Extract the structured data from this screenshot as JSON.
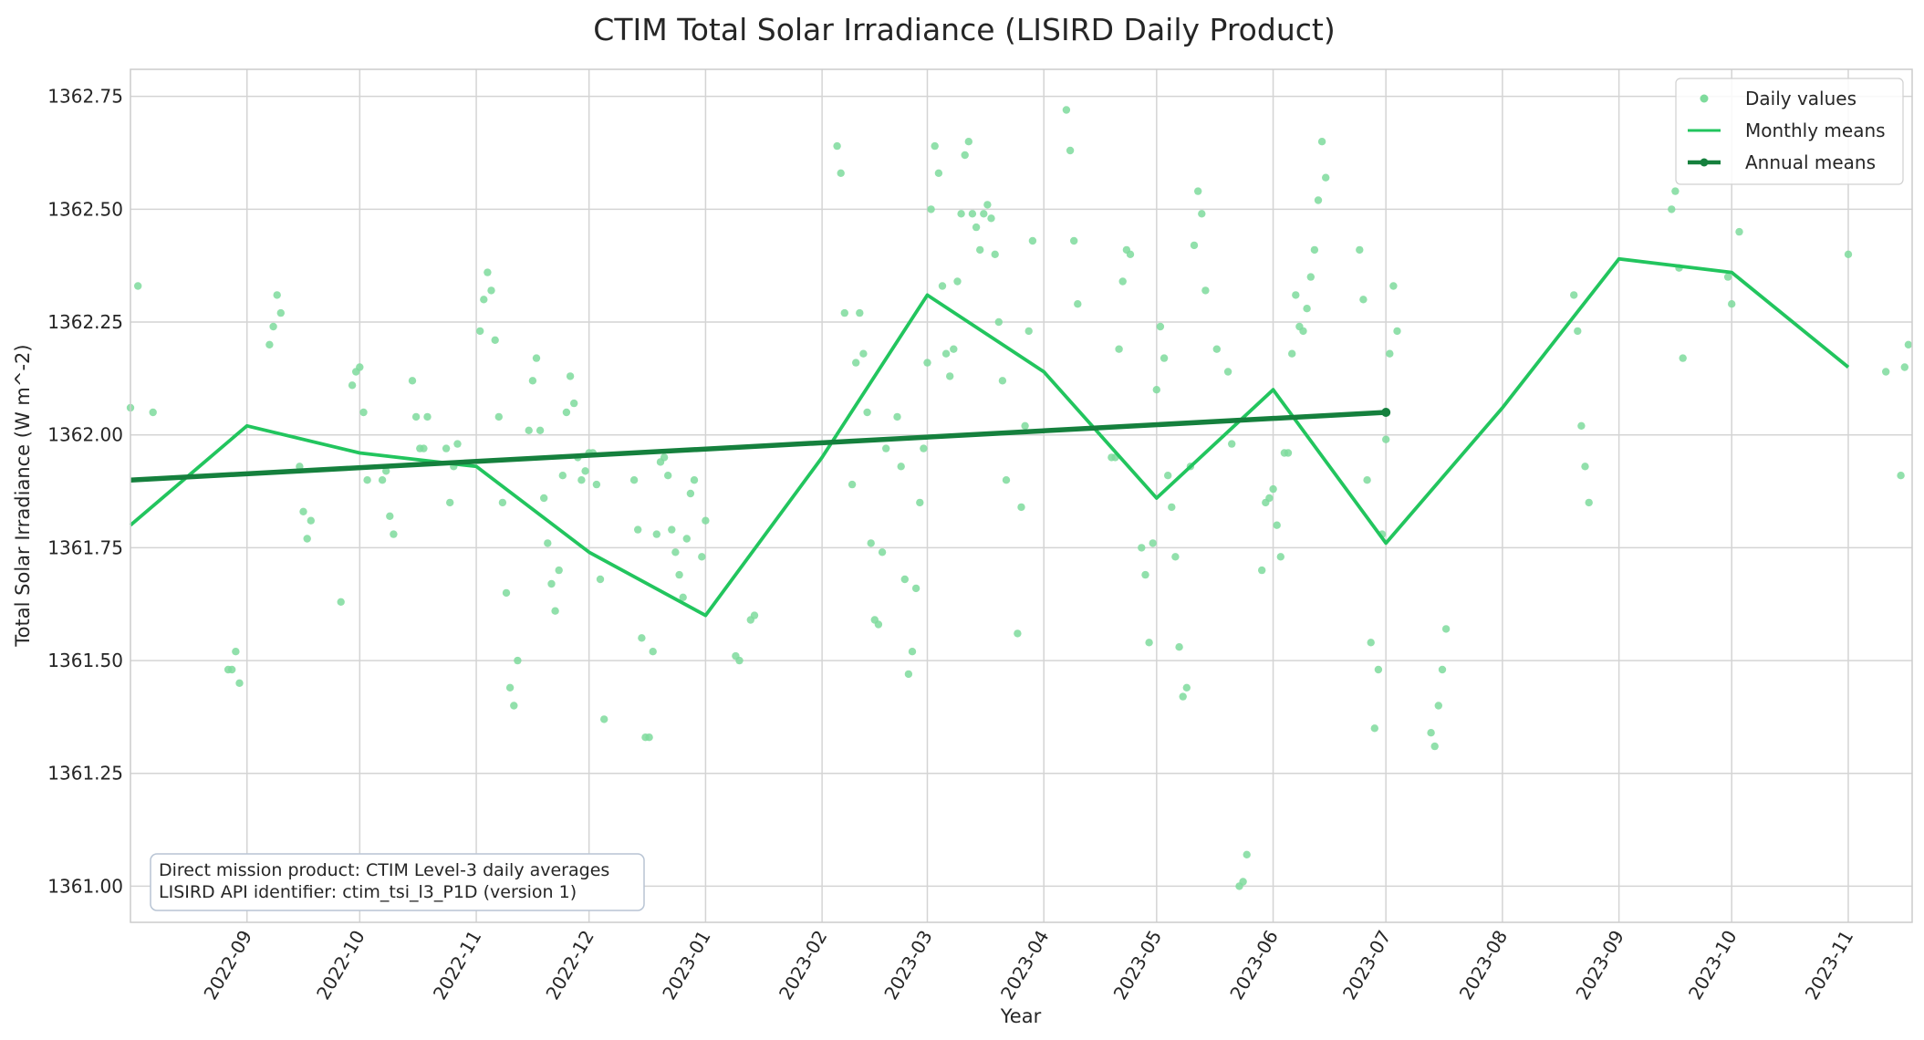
{
  "chart_data": {
    "type": "line",
    "title": "CTIM Total Solar Irradiance (LISIRD Daily Product)",
    "xlabel": "Year",
    "ylabel": "Total Solar Irradiance (W m^-2)",
    "xlim": [
      "2022-08-01",
      "2023-11-18"
    ],
    "ylim": [
      1360.92,
      1362.81
    ],
    "grid": true,
    "legend_position": "top-right",
    "x_ticks": [
      "2022-09",
      "2022-10",
      "2022-11",
      "2022-12",
      "2023-01",
      "2023-02",
      "2023-03",
      "2023-04",
      "2023-05",
      "2023-06",
      "2023-07",
      "2023-08",
      "2023-09",
      "2023-10",
      "2023-11"
    ],
    "y_ticks": [
      "1361.00",
      "1361.25",
      "1361.50",
      "1361.75",
      "1362.00",
      "1362.25",
      "1362.50",
      "1362.75"
    ],
    "annotation": [
      "Direct mission product: CTIM Level-3 daily averages",
      "LISIRD API identifier: ctim_tsi_l3_P1D (version 1)"
    ],
    "series": [
      {
        "name": "Daily values",
        "style": "scatter",
        "color": "#7edb9c",
        "points": [
          [
            "2022-08-01",
            1362.06
          ],
          [
            "2022-08-03",
            1362.33
          ],
          [
            "2022-08-07",
            1362.05
          ],
          [
            "2022-08-27",
            1361.48
          ],
          [
            "2022-08-28",
            1361.48
          ],
          [
            "2022-08-29",
            1361.52
          ],
          [
            "2022-08-30",
            1361.45
          ],
          [
            "2022-09-07",
            1362.2
          ],
          [
            "2022-09-08",
            1362.24
          ],
          [
            "2022-09-09",
            1362.31
          ],
          [
            "2022-09-10",
            1362.27
          ],
          [
            "2022-09-15",
            1361.93
          ],
          [
            "2022-09-16",
            1361.83
          ],
          [
            "2022-09-17",
            1361.77
          ],
          [
            "2022-09-18",
            1361.81
          ],
          [
            "2022-09-26",
            1361.63
          ],
          [
            "2022-09-29",
            1362.11
          ],
          [
            "2022-09-30",
            1362.14
          ],
          [
            "2022-10-01",
            1362.15
          ],
          [
            "2022-10-02",
            1362.05
          ],
          [
            "2022-10-03",
            1361.9
          ],
          [
            "2022-10-07",
            1361.9
          ],
          [
            "2022-10-08",
            1361.92
          ],
          [
            "2022-10-09",
            1361.82
          ],
          [
            "2022-10-10",
            1361.78
          ],
          [
            "2022-10-15",
            1362.12
          ],
          [
            "2022-10-16",
            1362.04
          ],
          [
            "2022-10-17",
            1361.97
          ],
          [
            "2022-10-18",
            1361.97
          ],
          [
            "2022-10-19",
            1362.04
          ],
          [
            "2022-10-24",
            1361.97
          ],
          [
            "2022-10-25",
            1361.85
          ],
          [
            "2022-10-26",
            1361.93
          ],
          [
            "2022-10-27",
            1361.98
          ],
          [
            "2022-11-02",
            1362.23
          ],
          [
            "2022-11-03",
            1362.3
          ],
          [
            "2022-11-04",
            1362.36
          ],
          [
            "2022-11-05",
            1362.32
          ],
          [
            "2022-11-06",
            1362.21
          ],
          [
            "2022-11-07",
            1362.04
          ],
          [
            "2022-11-08",
            1361.85
          ],
          [
            "2022-11-09",
            1361.65
          ],
          [
            "2022-11-10",
            1361.44
          ],
          [
            "2022-11-11",
            1361.4
          ],
          [
            "2022-11-12",
            1361.5
          ],
          [
            "2022-11-15",
            1362.01
          ],
          [
            "2022-11-16",
            1362.12
          ],
          [
            "2022-11-17",
            1362.17
          ],
          [
            "2022-11-18",
            1362.01
          ],
          [
            "2022-11-19",
            1361.86
          ],
          [
            "2022-11-20",
            1361.76
          ],
          [
            "2022-11-21",
            1361.67
          ],
          [
            "2022-11-22",
            1361.61
          ],
          [
            "2022-11-23",
            1361.7
          ],
          [
            "2022-11-24",
            1361.91
          ],
          [
            "2022-11-25",
            1362.05
          ],
          [
            "2022-11-26",
            1362.13
          ],
          [
            "2022-11-27",
            1362.07
          ],
          [
            "2022-11-28",
            1361.95
          ],
          [
            "2022-11-29",
            1361.9
          ],
          [
            "2022-11-30",
            1361.92
          ],
          [
            "2022-12-01",
            1361.96
          ],
          [
            "2022-12-02",
            1361.96
          ],
          [
            "2022-12-03",
            1361.89
          ],
          [
            "2022-12-04",
            1361.68
          ],
          [
            "2022-12-05",
            1361.37
          ],
          [
            "2022-12-13",
            1361.9
          ],
          [
            "2022-12-14",
            1361.79
          ],
          [
            "2022-12-15",
            1361.55
          ],
          [
            "2022-12-16",
            1361.33
          ],
          [
            "2022-12-17",
            1361.33
          ],
          [
            "2022-12-18",
            1361.52
          ],
          [
            "2022-12-19",
            1361.78
          ],
          [
            "2022-12-20",
            1361.94
          ],
          [
            "2022-12-21",
            1361.95
          ],
          [
            "2022-12-22",
            1361.91
          ],
          [
            "2022-12-23",
            1361.79
          ],
          [
            "2022-12-24",
            1361.74
          ],
          [
            "2022-12-25",
            1361.69
          ],
          [
            "2022-12-26",
            1361.64
          ],
          [
            "2022-12-27",
            1361.77
          ],
          [
            "2022-12-28",
            1361.87
          ],
          [
            "2022-12-29",
            1361.9
          ],
          [
            "2022-12-31",
            1361.73
          ],
          [
            "2023-01-01",
            1361.81
          ],
          [
            "2023-01-09",
            1361.51
          ],
          [
            "2023-01-10",
            1361.5
          ],
          [
            "2023-01-13",
            1361.59
          ],
          [
            "2023-01-14",
            1361.6
          ],
          [
            "2023-02-05",
            1362.64
          ],
          [
            "2023-02-06",
            1362.58
          ],
          [
            "2023-02-07",
            1362.27
          ],
          [
            "2023-02-09",
            1361.89
          ],
          [
            "2023-02-10",
            1362.16
          ],
          [
            "2023-02-11",
            1362.27
          ],
          [
            "2023-02-12",
            1362.18
          ],
          [
            "2023-02-13",
            1362.05
          ],
          [
            "2023-02-14",
            1361.76
          ],
          [
            "2023-02-15",
            1361.59
          ],
          [
            "2023-02-16",
            1361.58
          ],
          [
            "2023-02-17",
            1361.74
          ],
          [
            "2023-02-18",
            1361.97
          ],
          [
            "2023-02-21",
            1362.04
          ],
          [
            "2023-02-22",
            1361.93
          ],
          [
            "2023-02-23",
            1361.68
          ],
          [
            "2023-02-24",
            1361.47
          ],
          [
            "2023-02-25",
            1361.52
          ],
          [
            "2023-02-26",
            1361.66
          ],
          [
            "2023-02-27",
            1361.85
          ],
          [
            "2023-02-28",
            1361.97
          ],
          [
            "2023-03-01",
            1362.16
          ],
          [
            "2023-03-02",
            1362.5
          ],
          [
            "2023-03-03",
            1362.64
          ],
          [
            "2023-03-04",
            1362.58
          ],
          [
            "2023-03-05",
            1362.33
          ],
          [
            "2023-03-06",
            1362.18
          ],
          [
            "2023-03-07",
            1362.13
          ],
          [
            "2023-03-08",
            1362.19
          ],
          [
            "2023-03-09",
            1362.34
          ],
          [
            "2023-03-10",
            1362.49
          ],
          [
            "2023-03-11",
            1362.62
          ],
          [
            "2023-03-12",
            1362.65
          ],
          [
            "2023-03-13",
            1362.49
          ],
          [
            "2023-03-14",
            1362.46
          ],
          [
            "2023-03-15",
            1362.41
          ],
          [
            "2023-03-16",
            1362.49
          ],
          [
            "2023-03-17",
            1362.51
          ],
          [
            "2023-03-18",
            1362.48
          ],
          [
            "2023-03-19",
            1362.4
          ],
          [
            "2023-03-20",
            1362.25
          ],
          [
            "2023-03-21",
            1362.12
          ],
          [
            "2023-03-22",
            1361.9
          ],
          [
            "2023-03-25",
            1361.56
          ],
          [
            "2023-03-26",
            1361.84
          ],
          [
            "2023-03-27",
            1362.02
          ],
          [
            "2023-03-28",
            1362.23
          ],
          [
            "2023-03-29",
            1362.43
          ],
          [
            "2023-04-07",
            1362.72
          ],
          [
            "2023-04-08",
            1362.63
          ],
          [
            "2023-04-09",
            1362.43
          ],
          [
            "2023-04-10",
            1362.29
          ],
          [
            "2023-04-19",
            1361.95
          ],
          [
            "2023-04-20",
            1361.95
          ],
          [
            "2023-04-21",
            1362.19
          ],
          [
            "2023-04-22",
            1362.34
          ],
          [
            "2023-04-23",
            1362.41
          ],
          [
            "2023-04-24",
            1362.4
          ],
          [
            "2023-04-27",
            1361.75
          ],
          [
            "2023-04-28",
            1361.69
          ],
          [
            "2023-04-29",
            1361.54
          ],
          [
            "2023-04-30",
            1361.76
          ],
          [
            "2023-05-01",
            1362.1
          ],
          [
            "2023-05-02",
            1362.24
          ],
          [
            "2023-05-03",
            1362.17
          ],
          [
            "2023-05-04",
            1361.91
          ],
          [
            "2023-05-05",
            1361.84
          ],
          [
            "2023-05-06",
            1361.73
          ],
          [
            "2023-05-07",
            1361.53
          ],
          [
            "2023-05-08",
            1361.42
          ],
          [
            "2023-05-09",
            1361.44
          ],
          [
            "2023-05-10",
            1361.93
          ],
          [
            "2023-05-11",
            1362.42
          ],
          [
            "2023-05-12",
            1362.54
          ],
          [
            "2023-05-13",
            1362.49
          ],
          [
            "2023-05-14",
            1362.32
          ],
          [
            "2023-05-17",
            1362.19
          ],
          [
            "2023-05-20",
            1362.14
          ],
          [
            "2023-05-21",
            1361.98
          ],
          [
            "2023-05-23",
            1361.0
          ],
          [
            "2023-05-24",
            1361.01
          ],
          [
            "2023-05-25",
            1361.07
          ],
          [
            "2023-05-29",
            1361.7
          ],
          [
            "2023-05-30",
            1361.85
          ],
          [
            "2023-05-31",
            1361.86
          ],
          [
            "2023-06-01",
            1361.88
          ],
          [
            "2023-06-02",
            1361.8
          ],
          [
            "2023-06-03",
            1361.73
          ],
          [
            "2023-06-04",
            1361.96
          ],
          [
            "2023-06-05",
            1361.96
          ],
          [
            "2023-06-06",
            1362.18
          ],
          [
            "2023-06-07",
            1362.31
          ],
          [
            "2023-06-08",
            1362.24
          ],
          [
            "2023-06-09",
            1362.23
          ],
          [
            "2023-06-10",
            1362.28
          ],
          [
            "2023-06-11",
            1362.35
          ],
          [
            "2023-06-12",
            1362.41
          ],
          [
            "2023-06-13",
            1362.52
          ],
          [
            "2023-06-14",
            1362.65
          ],
          [
            "2023-06-15",
            1362.57
          ],
          [
            "2023-06-24",
            1362.41
          ],
          [
            "2023-06-25",
            1362.3
          ],
          [
            "2023-06-26",
            1361.9
          ],
          [
            "2023-06-27",
            1361.54
          ],
          [
            "2023-06-28",
            1361.35
          ],
          [
            "2023-06-29",
            1361.48
          ],
          [
            "2023-06-30",
            1361.78
          ],
          [
            "2023-07-01",
            1361.99
          ],
          [
            "2023-07-02",
            1362.18
          ],
          [
            "2023-07-03",
            1362.33
          ],
          [
            "2023-07-04",
            1362.23
          ],
          [
            "2023-07-13",
            1361.34
          ],
          [
            "2023-07-14",
            1361.31
          ],
          [
            "2023-07-15",
            1361.4
          ],
          [
            "2023-07-16",
            1361.48
          ],
          [
            "2023-07-17",
            1361.57
          ],
          [
            "2023-08-20",
            1362.31
          ],
          [
            "2023-08-21",
            1362.23
          ],
          [
            "2023-08-22",
            1362.02
          ],
          [
            "2023-08-23",
            1361.93
          ],
          [
            "2023-08-24",
            1361.85
          ],
          [
            "2023-09-15",
            1362.5
          ],
          [
            "2023-09-16",
            1362.54
          ],
          [
            "2023-09-17",
            1362.37
          ],
          [
            "2023-09-18",
            1362.17
          ],
          [
            "2023-09-30",
            1362.35
          ],
          [
            "2023-10-01",
            1362.29
          ],
          [
            "2023-10-03",
            1362.45
          ],
          [
            "2023-11-01",
            1362.4
          ],
          [
            "2023-11-11",
            1362.14
          ],
          [
            "2023-11-15",
            1361.91
          ],
          [
            "2023-11-16",
            1362.15
          ],
          [
            "2023-11-17",
            1362.2
          ]
        ]
      },
      {
        "name": "Monthly means",
        "style": "line",
        "color": "#22c55e",
        "points": [
          [
            "2022-08-01",
            1361.8
          ],
          [
            "2022-09-01",
            1362.02
          ],
          [
            "2022-10-01",
            1361.96
          ],
          [
            "2022-11-01",
            1361.93
          ],
          [
            "2022-12-01",
            1361.74
          ],
          [
            "2023-01-01",
            1361.6
          ],
          [
            "2023-02-01",
            1361.95
          ],
          [
            "2023-03-01",
            1362.31
          ],
          [
            "2023-04-01",
            1362.14
          ],
          [
            "2023-05-01",
            1361.86
          ],
          [
            "2023-06-01",
            1362.1
          ],
          [
            "2023-07-01",
            1361.76
          ],
          [
            "2023-08-01",
            1362.06
          ],
          [
            "2023-09-01",
            1362.39
          ],
          [
            "2023-10-01",
            1362.36
          ],
          [
            "2023-11-01",
            1362.15
          ]
        ]
      },
      {
        "name": "Annual means",
        "style": "line-markers",
        "color": "#15803d",
        "points": [
          [
            "2022-08-01",
            1361.9
          ],
          [
            "2023-07-01",
            1362.05
          ]
        ]
      }
    ]
  }
}
